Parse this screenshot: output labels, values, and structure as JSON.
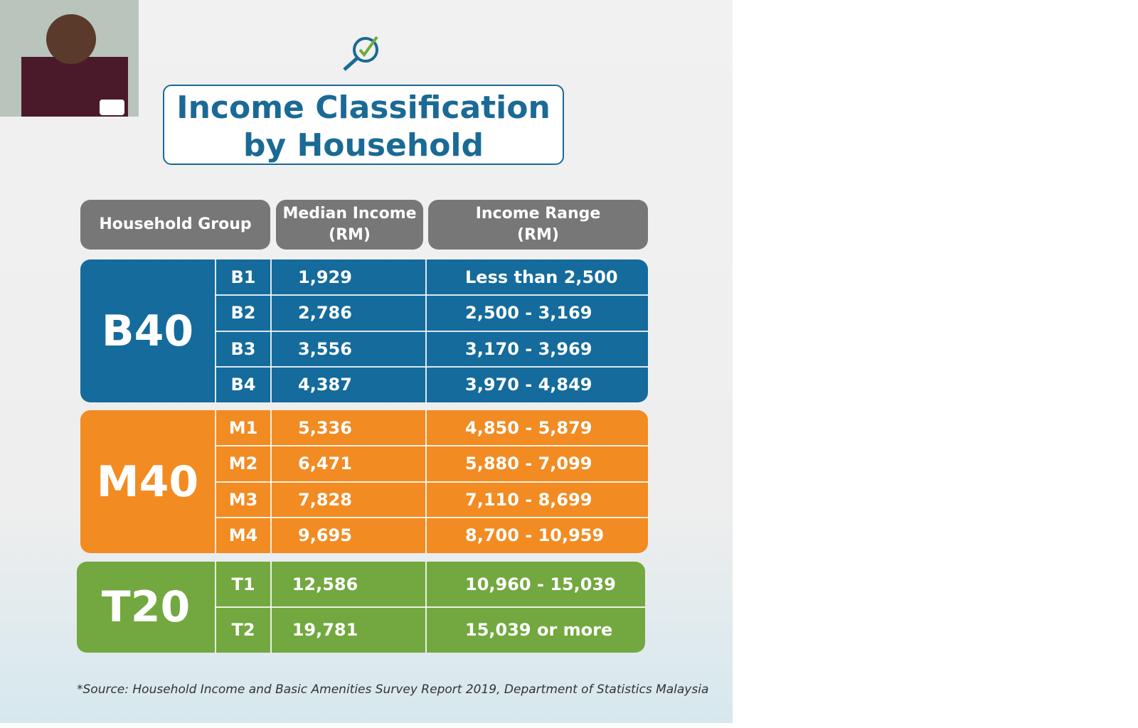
{
  "header": {
    "title_lines": [
      "Income Classification",
      "by Household"
    ]
  },
  "table": {
    "columns": [
      [
        "Household Group"
      ],
      [
        "Median Income",
        "(RM)"
      ],
      [
        "Income Range",
        "(RM)"
      ]
    ],
    "groups": [
      {
        "name": "B40",
        "color": "#146b9c",
        "rows": [
          [
            "B1",
            "1,929",
            "Less than  2,500"
          ],
          [
            "B2",
            "2,786",
            "2,500 - 3,169"
          ],
          [
            "B3",
            "3,556",
            "3,170 - 3,969"
          ],
          [
            "B4",
            "4,387",
            "3,970 - 4,849"
          ]
        ]
      },
      {
        "name": "M40",
        "color": "#f28b22",
        "rows": [
          [
            "M1",
            "5,336",
            "4,850 - 5,879"
          ],
          [
            "M2",
            "6,471",
            "5,880 - 7,099"
          ],
          [
            "M3",
            "7,828",
            "7,110 - 8,699"
          ],
          [
            "M4",
            "9,695",
            "8,700 - 10,959"
          ]
        ]
      },
      {
        "name": "T20",
        "color": "#72a83f",
        "rows": [
          [
            "T1",
            "12,586",
            "10,960 - 15,039"
          ],
          [
            "T2",
            "19,781",
            "15,039 or more"
          ]
        ]
      }
    ]
  },
  "footer": {
    "source": "*Source:  Household Income and Basic Amenities Survey Report 2019, Department of Statistics Malaysia"
  }
}
